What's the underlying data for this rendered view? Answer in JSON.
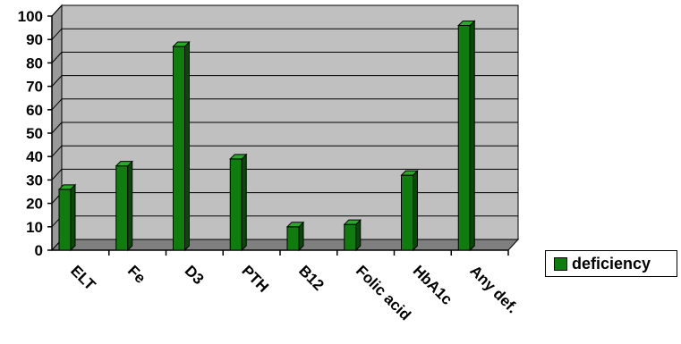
{
  "chart_data": {
    "type": "bar",
    "categories": [
      "ELT",
      "Fe",
      "D3",
      "PTH",
      "B12",
      "Folic acid",
      "HbA1c",
      "Any def."
    ],
    "series": [
      {
        "name": "deficiency",
        "values": [
          26,
          36,
          87,
          39,
          10,
          11,
          32,
          96
        ],
        "color": "#0e7d0e"
      }
    ],
    "title": "",
    "xlabel": "",
    "ylabel": "",
    "ylim": [
      0,
      100
    ],
    "yticks": [
      0,
      10,
      20,
      30,
      40,
      50,
      60,
      70,
      80,
      90,
      100
    ],
    "grid": true,
    "legend": "right",
    "plot_background": "#c0c0c0"
  }
}
